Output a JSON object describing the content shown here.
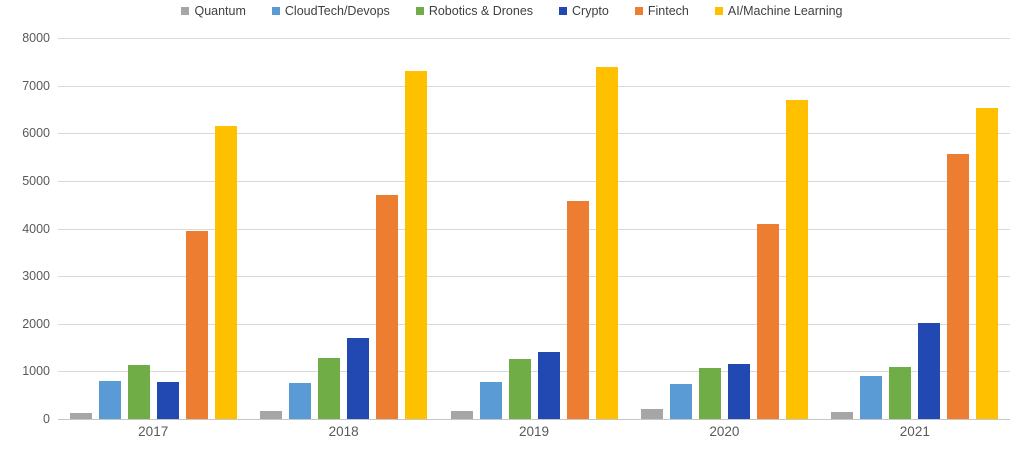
{
  "chart_data": {
    "type": "bar",
    "title": "",
    "categories": [
      "2017",
      "2018",
      "2019",
      "2020",
      "2021"
    ],
    "series": [
      {
        "name": "Quantum",
        "color": "#a6a6a6",
        "values": [
          125,
          175,
          175,
          200,
          150
        ]
      },
      {
        "name": "CloudTech/Devops",
        "color": "#5b9bd5",
        "values": [
          800,
          750,
          775,
          725,
          900
        ]
      },
      {
        "name": "Robotics & Drones",
        "color": "#70ad47",
        "values": [
          1125,
          1275,
          1250,
          1075,
          1100
        ]
      },
      {
        "name": "Crypto",
        "color": "#2149b1",
        "values": [
          775,
          1700,
          1400,
          1150,
          2025
        ]
      },
      {
        "name": "Fintech",
        "color": "#ed7d31",
        "values": [
          3950,
          4700,
          4575,
          4100,
          5575
        ]
      },
      {
        "name": "AI/Machine Learning",
        "color": "#ffc000",
        "values": [
          6150,
          7300,
          7400,
          6700,
          6525
        ]
      }
    ],
    "xlabel": "",
    "ylabel": "",
    "ylim": [
      0,
      8000
    ],
    "ytick_step": 1000,
    "yticks": [
      "0",
      "1000",
      "2000",
      "3000",
      "4000",
      "5000",
      "6000",
      "7000",
      "8000"
    ],
    "grid": true,
    "legend_position": "top",
    "colors": {
      "axis_text": "#595959",
      "legend_text": "#404040",
      "gridline": "#d9d9d9",
      "axis_line": "#c6c6c6",
      "background": "#ffffff"
    }
  }
}
